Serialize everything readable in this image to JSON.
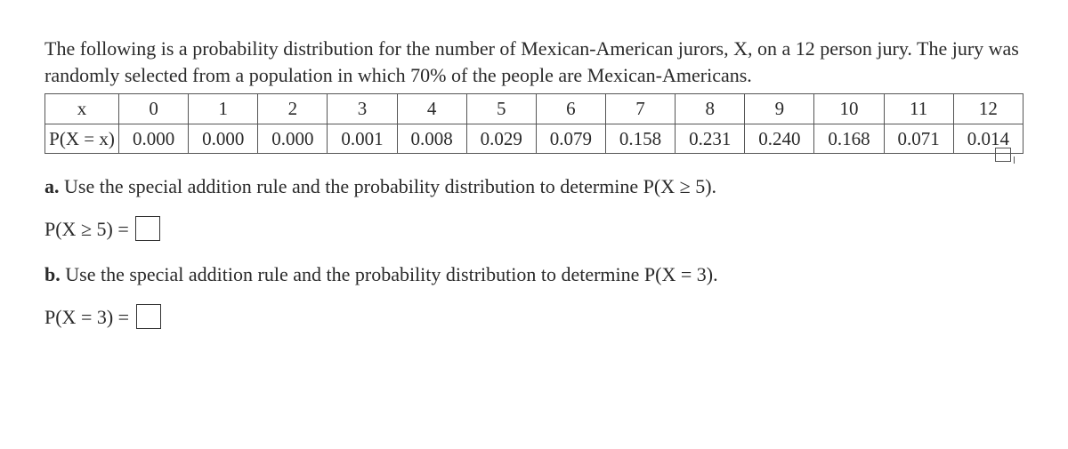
{
  "intro": "The following is a probability distribution for the number of Mexican-American jurors, X, on a 12 person jury. The jury was randomly selected from a population in which 70% of the people are Mexican-Americans.",
  "table": {
    "row1_header": "x",
    "row2_header": "P(X = x)",
    "x_values": [
      "0",
      "1",
      "2",
      "3",
      "4",
      "5",
      "6",
      "7",
      "8",
      "9",
      "10",
      "11",
      "12"
    ],
    "prob_values": [
      "0.000",
      "0.000",
      "0.000",
      "0.001",
      "0.008",
      "0.029",
      "0.079",
      "0.158",
      "0.231",
      "0.240",
      "0.168",
      "0.071",
      "0.014"
    ]
  },
  "partA": {
    "label": "a.",
    "text": "Use the special addition rule and the probability distribution to determine P(X ≥ 5).",
    "answer_prefix": "P(X ≥ 5) ="
  },
  "partB": {
    "label": "b.",
    "text": "Use the special addition rule and the probability distribution to determine P(X = 3).",
    "answer_prefix": "P(X = 3) ="
  },
  "colors": {
    "text": "#2a2a2a",
    "border": "#555555",
    "background": "#ffffff"
  },
  "fontsize_body": 22,
  "fontsize_table": 21
}
